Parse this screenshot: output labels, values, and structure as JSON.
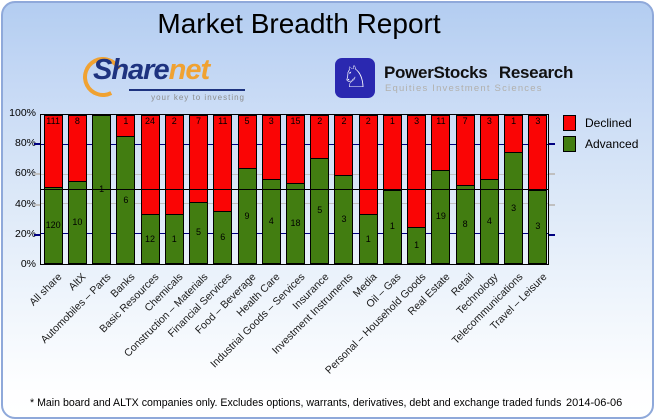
{
  "title": "Market Breadth Report",
  "logos": {
    "sharenet": {
      "name_primary": "Share",
      "name_secondary": "net",
      "tagline": "your key to investing",
      "brand_navy": "#1e337f",
      "brand_orange": "#f0a232"
    },
    "powerstocks": {
      "name": "PowerStocks Research",
      "tagline": "Equities Investment Sciences",
      "knight_glyph": "♘",
      "brand_blue": "#2a28b0"
    }
  },
  "chart_data": {
    "type": "bar",
    "stacked": true,
    "title": "Market Breadth Report",
    "ylabel": "",
    "xlabel": "",
    "ylim": [
      0,
      100
    ],
    "categories": [
      "All share",
      "AltX",
      "Automobiles – Parts",
      "Banks",
      "Basic Resources",
      "Chemicals",
      "Construction – Materials",
      "Financial Services",
      "Food – Beverage",
      "Health Care",
      "Industrial Goods – Services",
      "Insurance",
      "Investment Instruments",
      "Media",
      "Oil – Gas",
      "Personal – Household Goods",
      "Real Estate",
      "Retail",
      "Technology",
      "Telecommunications",
      "Travel – Leisure"
    ],
    "series": [
      {
        "name": "Declined",
        "color": "#fa0505",
        "values": [
          111,
          8,
          0,
          1,
          24,
          2,
          7,
          11,
          5,
          3,
          15,
          2,
          2,
          2,
          1,
          3,
          11,
          7,
          3,
          1,
          3
        ]
      },
      {
        "name": "Advanced",
        "color": "#427d11",
        "values": [
          120,
          10,
          1,
          6,
          12,
          1,
          5,
          6,
          9,
          4,
          18,
          5,
          3,
          1,
          1,
          1,
          19,
          8,
          4,
          3,
          3
        ]
      }
    ],
    "bar_unit": "number of companies (bars scaled to 100%)",
    "y_axis": {
      "ticks": [
        "0%",
        "20%",
        "40%",
        "60%",
        "80%",
        "100%"
      ],
      "gridlines": [
        {
          "pct": 20,
          "color": "#000080"
        },
        {
          "pct": 40,
          "color": "#c0c0c0"
        },
        {
          "pct": 60,
          "color": "#c0c0c0"
        },
        {
          "pct": 80,
          "color": "#000080"
        }
      ],
      "reference_line_pct": 50,
      "reference_line_color": "#000000"
    },
    "legend": [
      "Declined",
      "Advanced"
    ],
    "legend_position": "right-top"
  },
  "footer": {
    "note": "* Main board and ALTX companies only. Excludes options, warrants, derivatives, debt and exchange traded funds",
    "date": "2014-06-06"
  }
}
